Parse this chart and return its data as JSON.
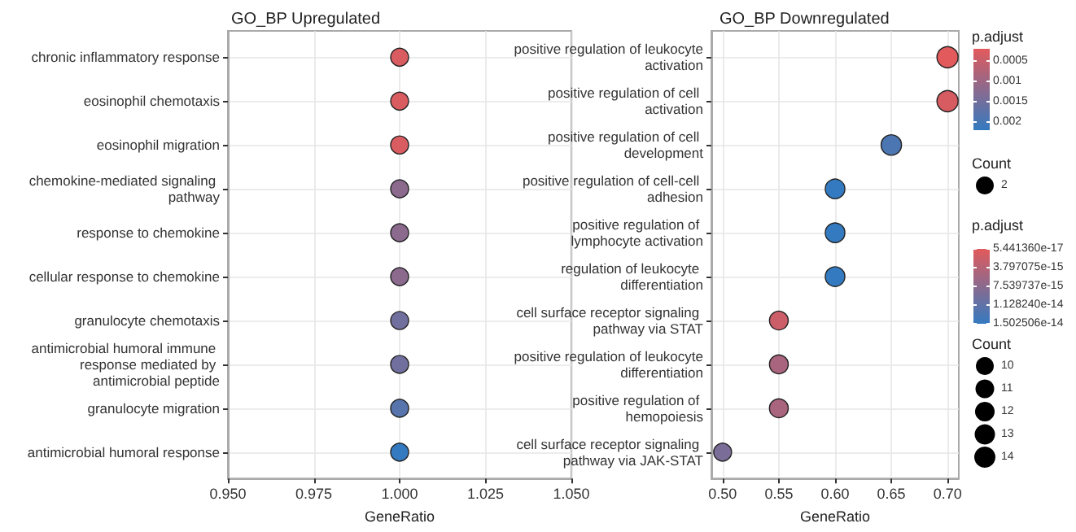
{
  "chart_data": [
    {
      "type": "bubble",
      "title": "GO_BP Upregulated",
      "xlabel": "GeneRatio",
      "orientation": "horizontal",
      "categories": [
        "chronic inflammatory response",
        "eosinophil chemotaxis",
        "eosinophil migration",
        "chemokine-mediated signaling pathway",
        "response to chemokine",
        "cellular response to chemokine",
        "granulocyte chemotaxis",
        "antimicrobial humoral immune response mediated by antimicrobial peptide",
        "granulocyte migration",
        "antimicrobial humoral response"
      ],
      "values": [
        1,
        1,
        1,
        1,
        1,
        1,
        1,
        1,
        1,
        1
      ],
      "sizes": [
        2,
        2,
        2,
        2,
        2,
        2,
        2,
        2,
        2,
        2
      ],
      "cvalues": [
        0.0003,
        0.0003,
        0.0003,
        0.0012,
        0.0012,
        0.0012,
        0.0015,
        0.0015,
        0.0018,
        0.0022
      ],
      "xlim": [
        0.95,
        1.05
      ],
      "xticks": [
        {
          "value": 0.95,
          "label": "0.950"
        },
        {
          "value": 0.975,
          "label": "0.975"
        },
        {
          "value": 1,
          "label": "1.000"
        },
        {
          "value": 1.025,
          "label": "1.025"
        },
        {
          "value": 1.05,
          "label": "1.050"
        }
      ],
      "clabel": "p.adjust",
      "clim": [
        0.0002,
        0.0022
      ],
      "cticks": [
        0.0005,
        0.001,
        0.0015,
        0.002
      ],
      "legend_title": "Count",
      "size_legend": [
        2
      ],
      "grid": true
    },
    {
      "type": "bubble",
      "title": "GO_BP Downregulated",
      "xlabel": "GeneRatio",
      "orientation": "horizontal",
      "categories": [
        "positive regulation of leukocyte activation",
        "positive regulation of cell activation",
        "positive regulation of cell development",
        "positive regulation of cell-cell adhesion",
        "positive regulation of lymphocyte activation",
        "regulation of leukocyte differentiation",
        "cell surface receptor signaling pathway via STAT",
        "positive regulation of leukocyte differentiation",
        "positive regulation of hemopoiesis",
        "cell surface receptor signaling pathway via JAK-STAT"
      ],
      "values": [
        0.7,
        0.7,
        0.65,
        0.6,
        0.6,
        0.6,
        0.55,
        0.55,
        0.55,
        0.5
      ],
      "sizes": [
        14,
        14,
        13,
        12,
        12,
        12,
        11,
        11,
        11,
        10
      ],
      "cvalues": [
        5.44136e-17,
        1e-15,
        1.3e-14,
        1.5e-14,
        1.5e-14,
        1.5e-14,
        2e-15,
        5e-15,
        5e-15,
        9e-15
      ],
      "xlim": [
        0.49,
        0.71
      ],
      "xticks": [
        {
          "value": 0.5,
          "label": "0.50"
        },
        {
          "value": 0.55,
          "label": "0.55"
        },
        {
          "value": 0.6,
          "label": "0.60"
        },
        {
          "value": 0.65,
          "label": "0.65"
        },
        {
          "value": 0.7,
          "label": "0.70"
        }
      ],
      "clabel": "p.adjust",
      "clim": [
        5.44136e-17,
        1.502506e-14
      ],
      "cticks": [
        {
          "value": 5.44136e-17,
          "label": "5.441360e-17"
        },
        {
          "value": 3.797075e-15,
          "label": "3.797075e-15"
        },
        {
          "value": 7.539737e-15,
          "label": "7.539737e-15"
        },
        {
          "value": 1.12824e-14,
          "label": "1.128240e-14"
        },
        {
          "value": 1.502506e-14,
          "label": "1.502506e-14"
        }
      ],
      "legend_title": "Count",
      "size_legend": [
        10,
        11,
        12,
        13,
        14
      ],
      "grid": true
    }
  ]
}
